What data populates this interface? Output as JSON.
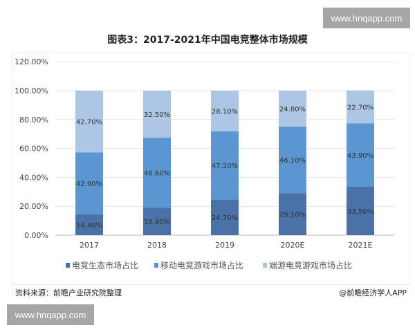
{
  "watermarks": [
    "www.hnqapp.com",
    "www.hnqapp.com"
  ],
  "footer": {
    "source": "资料来源：前瞻产业研究院整理",
    "credit": "@前瞻经济学人APP"
  },
  "chart_data": {
    "type": "bar",
    "stacked": true,
    "title": "图表3：2017-2021年中国电竞整体市场规模",
    "categories": [
      "2017",
      "2018",
      "2019",
      "2020E",
      "2021E"
    ],
    "series": [
      {
        "name": "电竞生态市场占比",
        "values": [
          14.4,
          18.9,
          24.7,
          29.1,
          33.5
        ],
        "color": "#4a72a8"
      },
      {
        "name": "移动电竞游戏市场占比",
        "values": [
          42.9,
          48.6,
          47.2,
          46.1,
          43.9
        ],
        "color": "#5b96d2"
      },
      {
        "name": "端游电竞游戏市场占比",
        "values": [
          42.7,
          32.5,
          28.1,
          24.8,
          22.7
        ],
        "color": "#adc6e6"
      }
    ],
    "ylim": [
      0,
      120
    ],
    "yticks": [
      "0.00%",
      "20.00%",
      "40.00%",
      "60.00%",
      "80.00%",
      "100.00%",
      "120.00%"
    ],
    "grid": true,
    "legend": "bottom"
  }
}
